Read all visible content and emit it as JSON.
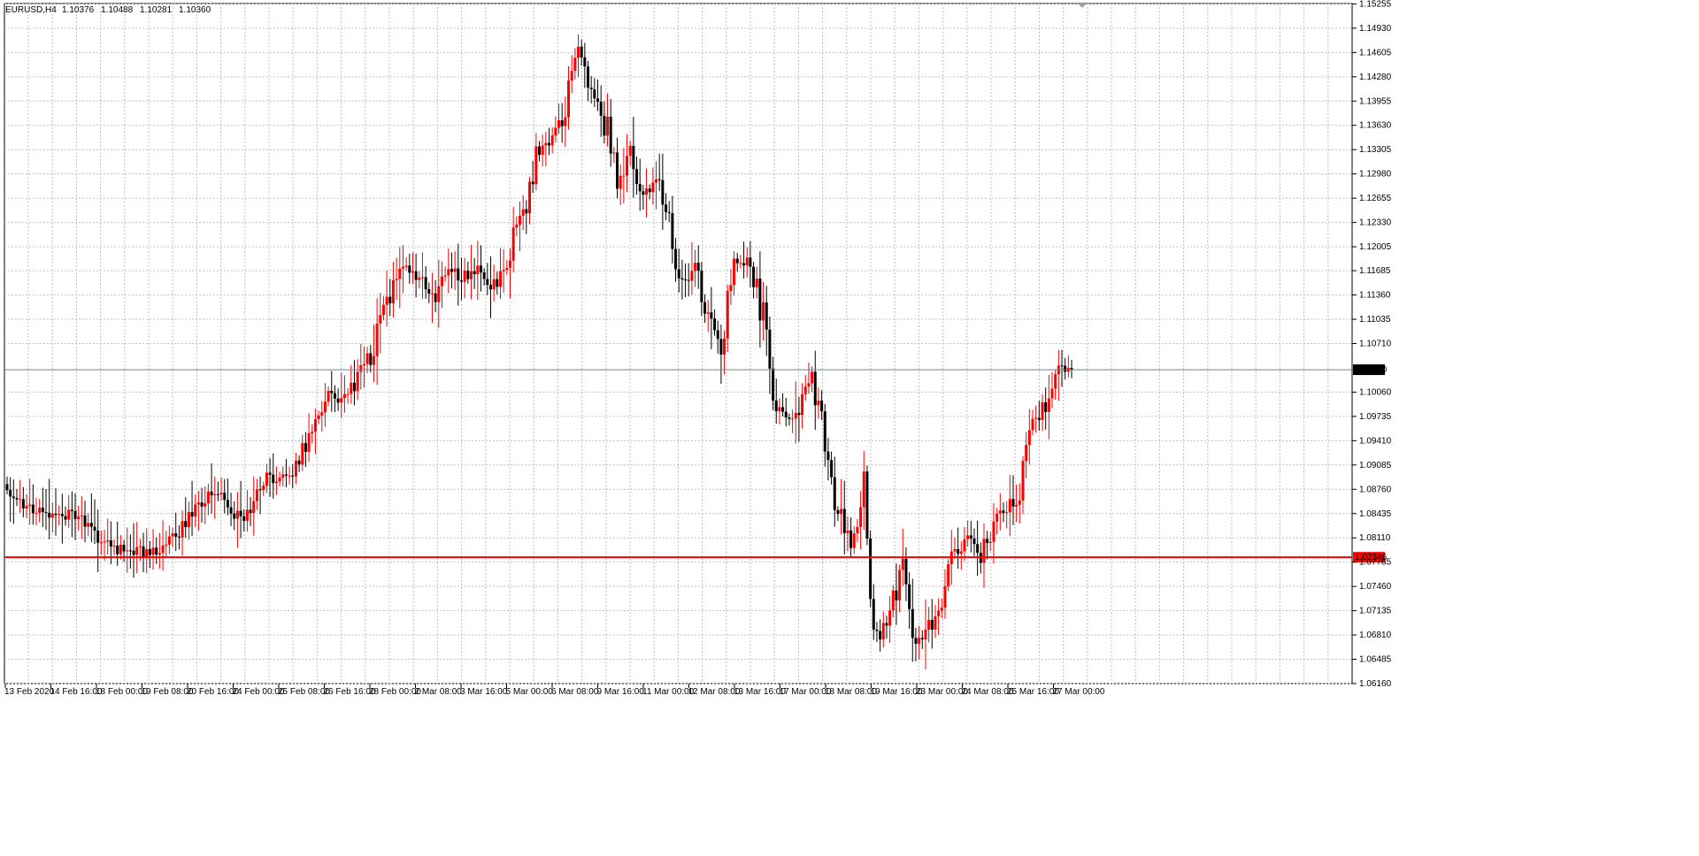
{
  "header": {
    "symbol": "EURUSD,H4",
    "open": "1.10376",
    "high": "1.10488",
    "low": "1.10281",
    "close": "1.10360"
  },
  "colors": {
    "bull": "#ff0000",
    "bear": "#000000",
    "grid": "#c0c0c0",
    "level_line": "#ff0000",
    "price_line": "#708090"
  },
  "chart_data": {
    "type": "candlestick",
    "timeframe": "H4",
    "y_ticks": [
      "1.15255",
      "1.14930",
      "1.14605",
      "1.14280",
      "1.13955",
      "1.13630",
      "1.13305",
      "1.12980",
      "1.12655",
      "1.12330",
      "1.12005",
      "1.11685",
      "1.11360",
      "1.11035",
      "1.10710",
      "1.10060",
      "1.09735",
      "1.09410",
      "1.09085",
      "1.08760",
      "1.08435",
      "1.08110",
      "1.07785",
      "1.07460",
      "1.07135",
      "1.06810",
      "1.06485",
      "1.06160"
    ],
    "ylim": [
      1.0616,
      1.1526
    ],
    "x_ticks": [
      "13 Feb 2020",
      "14 Feb 16:00",
      "18 Feb 00:00",
      "19 Feb 08:00",
      "20 Feb 16:00",
      "24 Feb 00:00",
      "25 Feb 08:00",
      "26 Feb 16:00",
      "28 Feb 00:00",
      "2 Mar 08:00",
      "3 Mar 16:00",
      "5 Mar 00:00",
      "6 Mar 08:00",
      "9 Mar 16:00",
      "11 Mar 00:00",
      "12 Mar 08:00",
      "13 Mar 16:00",
      "17 Mar 00:00",
      "18 Mar 08:00",
      "19 Mar 16:00",
      "23 Mar 00:00",
      "24 Mar 08:00",
      "25 Mar 16:00",
      "27 Mar 00:00"
    ],
    "current_price": {
      "value": 1.1036,
      "label": "1.10360"
    },
    "horizontal_level": {
      "value": 1.0785,
      "label": "1.07846"
    },
    "anchors": [
      1.088,
      1.0862,
      1.0848,
      1.084,
      1.0836,
      1.0843,
      1.083,
      1.0808,
      1.0799,
      1.0793,
      1.0795,
      1.0788,
      1.0801,
      1.0815,
      1.0842,
      1.0856,
      1.0872,
      1.0851,
      1.0835,
      1.0862,
      1.0893,
      1.0885,
      1.0901,
      1.0938,
      1.0975,
      1.1004,
      1.0995,
      1.1025,
      1.1059,
      1.1108,
      1.1158,
      1.1178,
      1.115,
      1.1132,
      1.1171,
      1.1158,
      1.1175,
      1.1143,
      1.1158,
      1.1212,
      1.1264,
      1.1331,
      1.1338,
      1.1383,
      1.1462,
      1.1402,
      1.1372,
      1.1288,
      1.1324,
      1.1265,
      1.1287,
      1.1235,
      1.1145,
      1.1185,
      1.1103,
      1.1078,
      1.1181,
      1.1178,
      1.1135,
      1.0995,
      1.0968,
      1.0988,
      1.1024,
      1.0935,
      1.085,
      1.0811,
      1.0865,
      1.0678,
      1.0706,
      1.0779,
      1.0663,
      1.0692,
      1.0715,
      1.0791,
      1.0815,
      1.0788,
      1.0832,
      1.0847,
      1.0872,
      1.0962,
      1.0995,
      1.1038,
      1.1036
    ]
  }
}
